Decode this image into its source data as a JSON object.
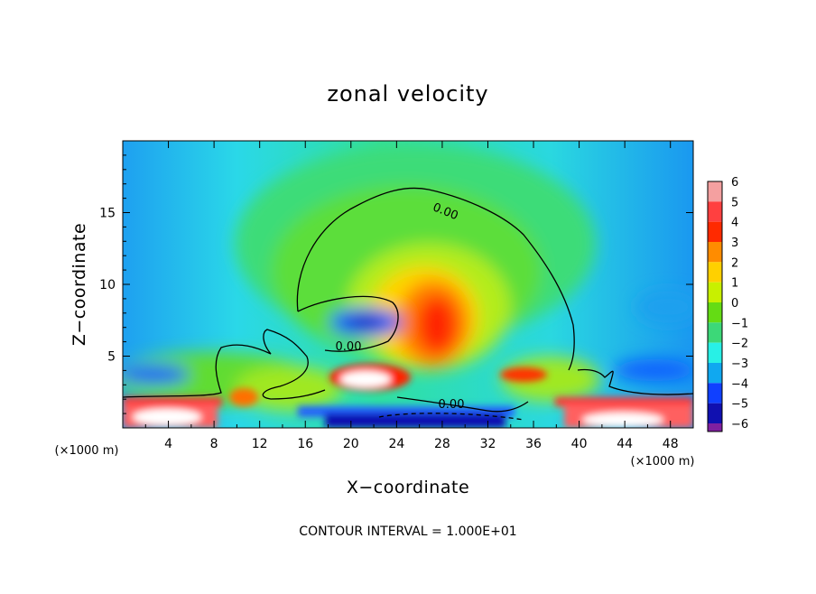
{
  "chart_data": {
    "type": "heatmap",
    "title": "zonal velocity",
    "xlabel": "X−coordinate",
    "ylabel": "Z−coordinate",
    "x_unit_label": "(×1000 m)",
    "x_unit_label_right": "(×1000 m)",
    "xlim": [
      0,
      50
    ],
    "ylim": [
      0,
      20
    ],
    "x_ticks": [
      "4",
      "8",
      "12",
      "16",
      "20",
      "24",
      "28",
      "32",
      "36",
      "40",
      "44",
      "48"
    ],
    "y_ticks": [
      "5",
      "10",
      "15"
    ],
    "colorbar": {
      "levels": [
        "6",
        "5",
        "4",
        "3",
        "2",
        "1",
        "0",
        "−1",
        "−2",
        "−3",
        "−4",
        "−5",
        "−6"
      ],
      "colors": [
        "#f4a0a0",
        "#ff4040",
        "#ff2a00",
        "#ff8c00",
        "#ffd000",
        "#c8f000",
        "#64dc14",
        "#3cd878",
        "#28f0e6",
        "#10a8f0",
        "#1040ff",
        "#1010b0",
        "#8020a0"
      ]
    },
    "contour_labels": [
      "0.00",
      "0.00",
      "0.00"
    ],
    "contour_interval_text": "CONTOUR INTERVAL = 1.000E+01",
    "features": [
      {
        "name": "maximum jet core",
        "x": 27.5,
        "z": 7.5,
        "value": 4.5
      },
      {
        "name": "low-level maximum",
        "x": 21.5,
        "z": 3.0,
        "value": 6
      },
      {
        "name": "left surface maximum",
        "x": 5,
        "z": 1,
        "value": 6
      },
      {
        "name": "right surface maximum",
        "x": 44,
        "z": 1,
        "value": 5
      },
      {
        "name": "negative pocket",
        "x": 21,
        "z": 7,
        "value": -3.5
      },
      {
        "name": "surface minimum",
        "x": 28,
        "z": 0.8,
        "value": -4.5
      }
    ],
    "grid": false,
    "legend": "colorbar-right"
  }
}
